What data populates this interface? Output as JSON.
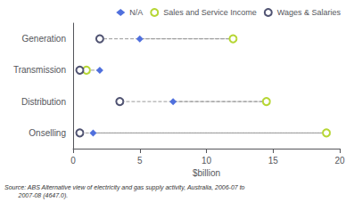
{
  "chart_data": {
    "type": "scatter",
    "orientation": "horizontal",
    "categories": [
      "Generation",
      "Transmission",
      "Distribution",
      "Onselling"
    ],
    "series": [
      {
        "name": "N/A",
        "marker": "diamond",
        "values": [
          5.0,
          2.0,
          7.5,
          1.5
        ]
      },
      {
        "name": "Sales and Service Income",
        "marker": "open_circle",
        "values": [
          12.0,
          1.0,
          14.5,
          19.0
        ]
      },
      {
        "name": "Wages & Salaries",
        "marker": "open_circle",
        "values": [
          2.0,
          0.5,
          3.5,
          0.5
        ]
      }
    ],
    "xlabel": "$billion",
    "xlim": [
      0,
      20
    ],
    "xticks": [
      0,
      5,
      10,
      15,
      20
    ],
    "grid": false,
    "legend": "upper right",
    "annotations": [
      "Source: ABS Alternative view of electricity and gas supply activity, Australia, 2006-07 to\n        2007-08 (4647.0)."
    ]
  }
}
